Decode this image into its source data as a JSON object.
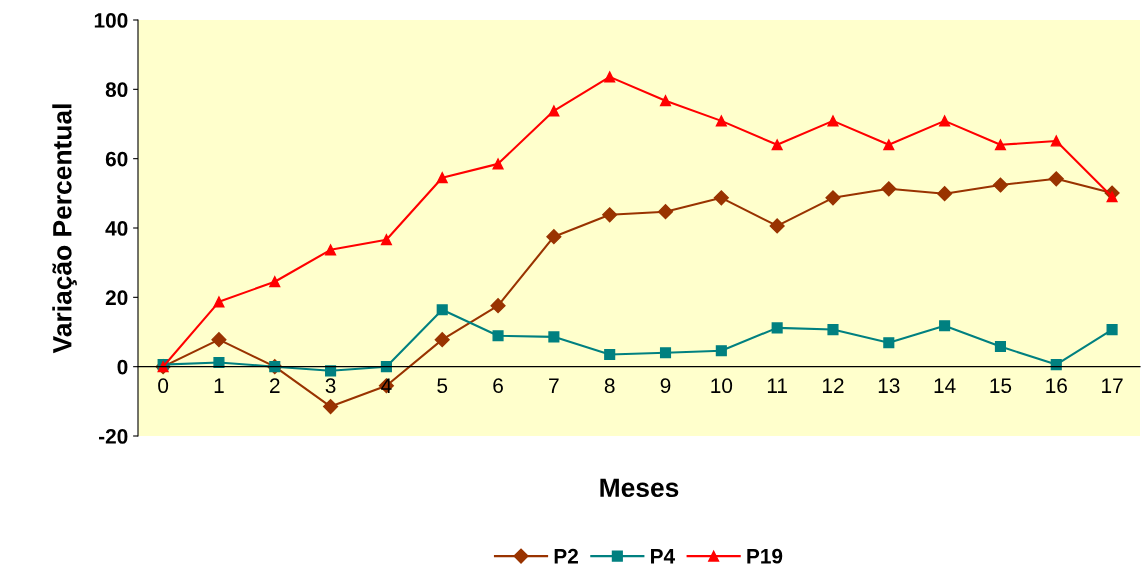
{
  "chart_data": {
    "type": "line",
    "xlabel": "Meses",
    "ylabel": "Variação Percentual",
    "categories": [
      "0",
      "1",
      "2",
      "3",
      "4",
      "5",
      "6",
      "7",
      "8",
      "9",
      "10",
      "11",
      "12",
      "13",
      "14",
      "15",
      "16",
      "17"
    ],
    "series": [
      {
        "name": "P2",
        "color": "#993300",
        "marker": "diamond",
        "values": [
          0,
          7.8,
          0,
          -11.5,
          -5.5,
          7.8,
          17.6,
          37.5,
          43.8,
          44.7,
          48.7,
          40.6,
          48.7,
          51.3,
          49.9,
          52.4,
          54.2,
          50.1
        ]
      },
      {
        "name": "P4",
        "color": "#008080",
        "marker": "square",
        "values": [
          0.6,
          1.2,
          0,
          -1.2,
          0,
          16.4,
          8.9,
          8.6,
          3.5,
          4,
          4.6,
          11.2,
          10.7,
          6.9,
          11.8,
          5.8,
          0.6,
          10.7
        ]
      },
      {
        "name": "P19",
        "color": "#ff0000",
        "marker": "triangle",
        "values": [
          0,
          18.7,
          24.5,
          33.7,
          36.6,
          54.5,
          58.5,
          73.8,
          83.6,
          76.7,
          70.9,
          64,
          70.9,
          64,
          70.9,
          64,
          65.1,
          49
        ]
      }
    ],
    "ylim": [
      -20,
      100
    ],
    "yticks": [
      -20,
      0,
      20,
      40,
      60,
      80,
      100
    ],
    "grid": false,
    "legend": "bottom",
    "line_style": "solid"
  }
}
